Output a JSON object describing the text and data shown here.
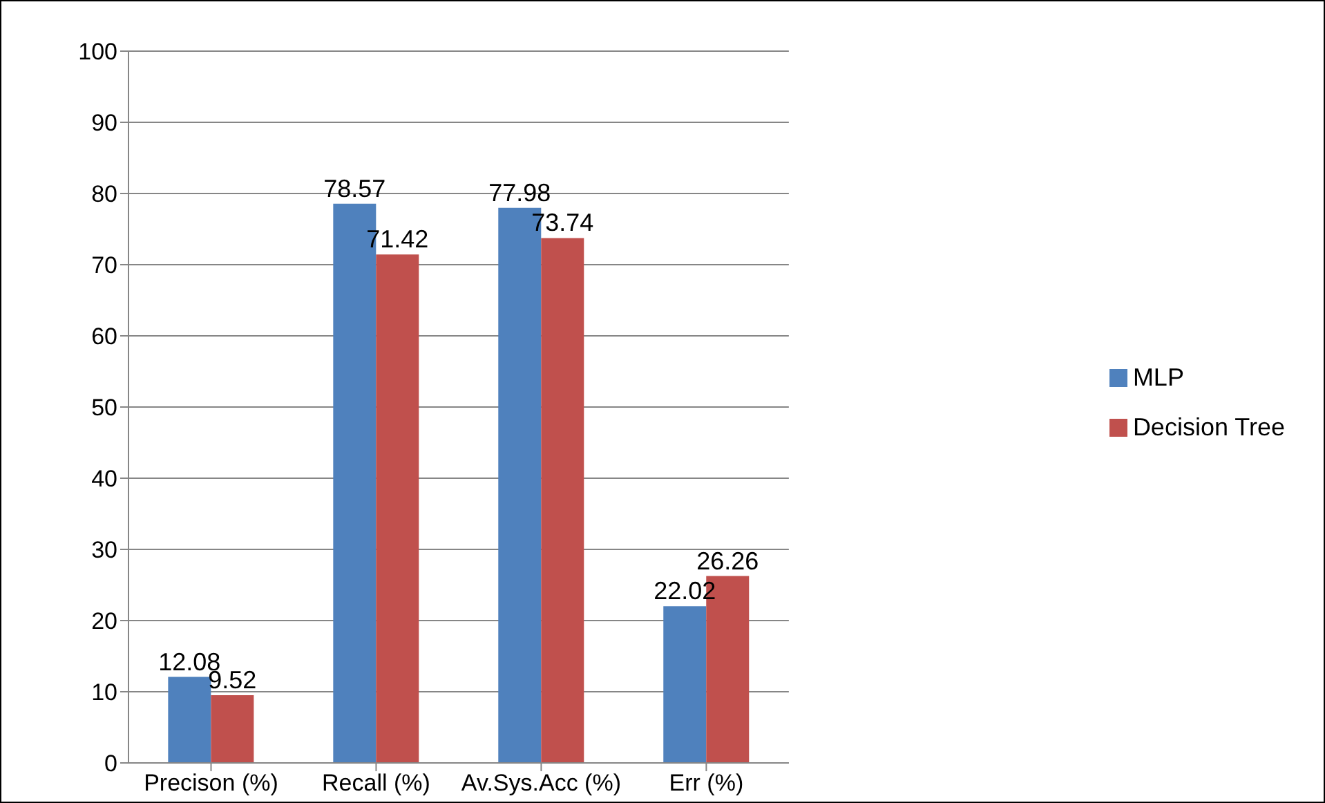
{
  "chart_data": {
    "type": "bar",
    "categories": [
      "Precison (%)",
      "Recall (%)",
      "Av.Sys.Acc (%)",
      "Err (%)"
    ],
    "series": [
      {
        "name": "MLP",
        "color": "#4f81bd",
        "values": [
          12.08,
          78.57,
          77.98,
          22.02
        ]
      },
      {
        "name": "Decision Tree",
        "color": "#c0504d",
        "values": [
          9.52,
          71.42,
          73.74,
          26.26
        ]
      }
    ],
    "ylim": [
      0,
      100
    ],
    "yticks": [
      0,
      10,
      20,
      30,
      40,
      50,
      60,
      70,
      80,
      90,
      100
    ],
    "grid": "y",
    "legend": "right",
    "data_labels": true
  }
}
